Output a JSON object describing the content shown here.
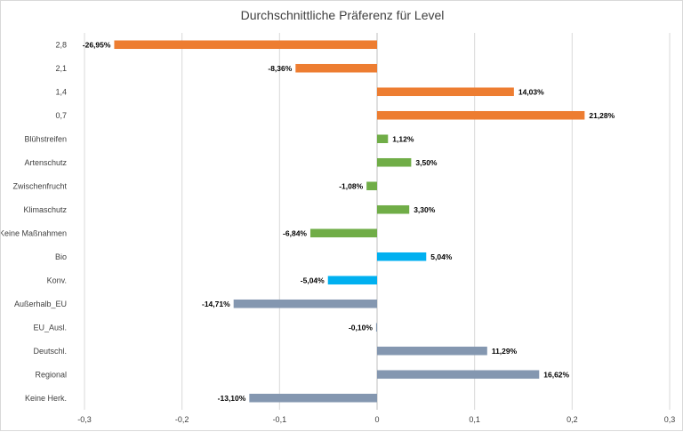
{
  "chart_data": {
    "type": "bar",
    "orientation": "horizontal",
    "title": "Durchschnittliche Präferenz für Level",
    "xlabel": "",
    "ylabel": "",
    "xlim": [
      -0.3,
      0.3
    ],
    "xticks": [
      -0.3,
      -0.2,
      -0.1,
      0,
      0.1,
      0.2,
      0.3
    ],
    "xtick_labels": [
      "-0,3",
      "-0,2",
      "-0,1",
      "0",
      "0,1",
      "0,2",
      "0,3"
    ],
    "grid": "vertical",
    "legend": "none",
    "categories": [
      "2,8",
      "2,1",
      "1,4",
      "0,7",
      "Blühstreifen",
      "Artenschutz",
      "Zwischenfrucht",
      "Klimaschutz",
      "Keine Maßnahmen",
      "Bio",
      "Konv.",
      "Außerhalb_EU",
      "EU_Ausl.",
      "Deutschl.",
      "Regional",
      "Keine Herk."
    ],
    "values": [
      -0.2695,
      -0.0836,
      0.1403,
      0.2128,
      0.0112,
      0.035,
      -0.0108,
      0.033,
      -0.0684,
      0.0504,
      -0.0504,
      -0.1471,
      -0.001,
      0.1129,
      0.1662,
      -0.131
    ],
    "data_labels": [
      "-26,95%",
      "-8,36%",
      "14,03%",
      "21,28%",
      "1,12%",
      "3,50%",
      "-1,08%",
      "3,30%",
      "-6,84%",
      "5,04%",
      "-5,04%",
      "-14,71%",
      "-0,10%",
      "11,29%",
      "16,62%",
      "-13,10%"
    ],
    "colors": [
      "#ED7D31",
      "#ED7D31",
      "#ED7D31",
      "#ED7D31",
      "#70AD47",
      "#70AD47",
      "#70AD47",
      "#70AD47",
      "#70AD47",
      "#00B0F0",
      "#00B0F0",
      "#8497B0",
      "#8497B0",
      "#8497B0",
      "#8497B0",
      "#8497B0"
    ]
  }
}
